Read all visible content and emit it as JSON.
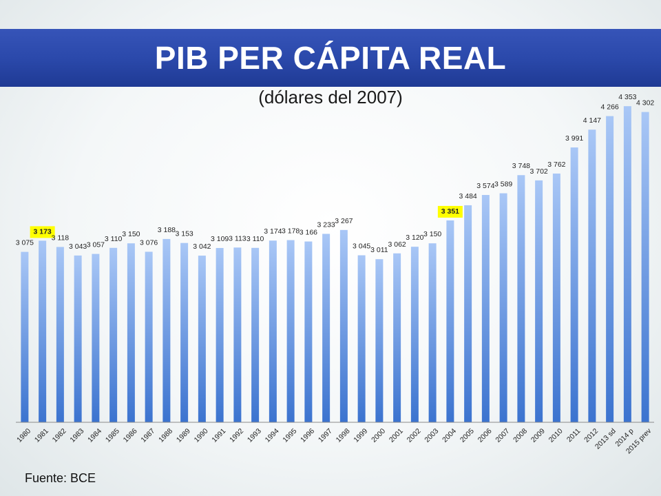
{
  "header": {
    "title": "PIB PER CÁPITA REAL",
    "subtitle": "(dólares del 2007)"
  },
  "footer": {
    "source": "Fuente: BCE"
  },
  "colors": {
    "banner": "#2b49ab",
    "bar_top": "#a9c7f6",
    "bar_bottom": "#3b73cf",
    "highlight": "#ffff00"
  },
  "chart_data": {
    "type": "bar",
    "categories": [
      "1980",
      "1981",
      "1982",
      "1983",
      "1984",
      "1985",
      "1986",
      "1987",
      "1988",
      "1989",
      "1990",
      "1991",
      "1992",
      "1993",
      "1994",
      "1995",
      "1996",
      "1997",
      "1998",
      "1999",
      "2000",
      "2001",
      "2002",
      "2003",
      "2004",
      "2005",
      "2006",
      "2007",
      "2008",
      "2009",
      "2010",
      "2011",
      "2012",
      "2013 sd",
      "2014 p",
      "2015 prev"
    ],
    "values": [
      3075,
      3173,
      3118,
      3043,
      3057,
      3110,
      3150,
      3076,
      3188,
      3153,
      3042,
      3109,
      3113,
      3110,
      3174,
      3178,
      3166,
      3233,
      3267,
      3045,
      3011,
      3062,
      3120,
      3150,
      3351,
      3484,
      3574,
      3589,
      3748,
      3702,
      3762,
      3991,
      4147,
      4266,
      4353,
      4302
    ],
    "data_labels": [
      "3 075",
      "3 173",
      "3 118",
      "3 043",
      "3 057",
      "3 110",
      "3 150",
      "3 076",
      "3 188",
      "3 153",
      "3 042",
      "3 109",
      "3 113",
      "3 110",
      "3 174",
      "3 178",
      "3 166",
      "3 233",
      "3 267",
      "3 045",
      "3 011",
      "3 062",
      "3 120",
      "3 150",
      "3 351",
      "3 484",
      "3 574",
      "3 589",
      "3 748",
      "3 702",
      "3 762",
      "3 991",
      "4 147",
      "4 266",
      "4 353",
      "4 302"
    ],
    "highlighted": [
      "1981",
      "2004"
    ],
    "ylim": [
      1580,
      4390
    ],
    "title": "",
    "xlabel": "",
    "ylabel": "",
    "grid": false,
    "legend": false
  }
}
